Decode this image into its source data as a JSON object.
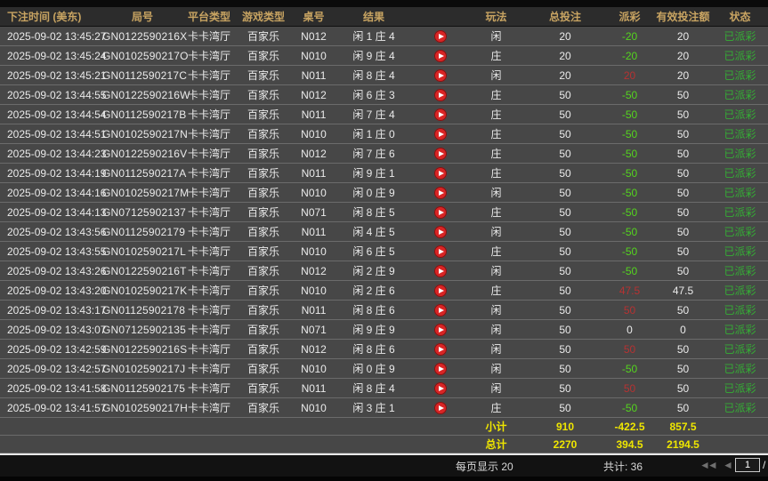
{
  "table": {
    "columns": {
      "time": "下注时间 (美东)",
      "game_no": "局号",
      "platform": "平台类型",
      "game_type": "游戏类型",
      "table_no": "桌号",
      "result": "结果",
      "play": "玩法",
      "total_bet": "总投注",
      "payout": "派彩",
      "valid_bet": "有效投注额",
      "status": "状态"
    },
    "rows": [
      {
        "time": "2025-09-02 13:45:27",
        "game_no": "GN0122590216X",
        "platform": "卡卡湾厅",
        "game_type": "百家乐",
        "table_no": "N012",
        "result": "闲 1 庄 4",
        "play": "闲",
        "total_bet": "20",
        "payout": "-20",
        "payout_class": "neg",
        "valid_bet": "20",
        "status": "已派彩"
      },
      {
        "time": "2025-09-02 13:45:24",
        "game_no": "GN0102590217O",
        "platform": "卡卡湾厅",
        "game_type": "百家乐",
        "table_no": "N010",
        "result": "闲 9 庄 4",
        "play": "庄",
        "total_bet": "20",
        "payout": "-20",
        "payout_class": "neg",
        "valid_bet": "20",
        "status": "已派彩"
      },
      {
        "time": "2025-09-02 13:45:21",
        "game_no": "GN0112590217C",
        "platform": "卡卡湾厅",
        "game_type": "百家乐",
        "table_no": "N011",
        "result": "闲 8 庄 4",
        "play": "闲",
        "total_bet": "20",
        "payout": "20",
        "payout_class": "pos",
        "valid_bet": "20",
        "status": "已派彩"
      },
      {
        "time": "2025-09-02 13:44:55",
        "game_no": "GN0122590216W",
        "platform": "卡卡湾厅",
        "game_type": "百家乐",
        "table_no": "N012",
        "result": "闲 6 庄 3",
        "play": "庄",
        "total_bet": "50",
        "payout": "-50",
        "payout_class": "neg",
        "valid_bet": "50",
        "status": "已派彩"
      },
      {
        "time": "2025-09-02 13:44:54",
        "game_no": "GN0112590217B",
        "platform": "卡卡湾厅",
        "game_type": "百家乐",
        "table_no": "N011",
        "result": "闲 7 庄 4",
        "play": "庄",
        "total_bet": "50",
        "payout": "-50",
        "payout_class": "neg",
        "valid_bet": "50",
        "status": "已派彩"
      },
      {
        "time": "2025-09-02 13:44:51",
        "game_no": "GN0102590217N",
        "platform": "卡卡湾厅",
        "game_type": "百家乐",
        "table_no": "N010",
        "result": "闲 1 庄 0",
        "play": "庄",
        "total_bet": "50",
        "payout": "-50",
        "payout_class": "neg",
        "valid_bet": "50",
        "status": "已派彩"
      },
      {
        "time": "2025-09-02 13:44:23",
        "game_no": "GN0122590216V",
        "platform": "卡卡湾厅",
        "game_type": "百家乐",
        "table_no": "N012",
        "result": "闲 7 庄 6",
        "play": "庄",
        "total_bet": "50",
        "payout": "-50",
        "payout_class": "neg",
        "valid_bet": "50",
        "status": "已派彩"
      },
      {
        "time": "2025-09-02 13:44:19",
        "game_no": "GN0112590217A",
        "platform": "卡卡湾厅",
        "game_type": "百家乐",
        "table_no": "N011",
        "result": "闲 9 庄 1",
        "play": "庄",
        "total_bet": "50",
        "payout": "-50",
        "payout_class": "neg",
        "valid_bet": "50",
        "status": "已派彩"
      },
      {
        "time": "2025-09-02 13:44:16",
        "game_no": "GN0102590217M",
        "platform": "卡卡湾厅",
        "game_type": "百家乐",
        "table_no": "N010",
        "result": "闲 0 庄 9",
        "play": "闲",
        "total_bet": "50",
        "payout": "-50",
        "payout_class": "neg",
        "valid_bet": "50",
        "status": "已派彩"
      },
      {
        "time": "2025-09-02 13:44:13",
        "game_no": "GN07125902137",
        "platform": "卡卡湾厅",
        "game_type": "百家乐",
        "table_no": "N071",
        "result": "闲 8 庄 5",
        "play": "庄",
        "total_bet": "50",
        "payout": "-50",
        "payout_class": "neg",
        "valid_bet": "50",
        "status": "已派彩"
      },
      {
        "time": "2025-09-02 13:43:56",
        "game_no": "GN01125902179",
        "platform": "卡卡湾厅",
        "game_type": "百家乐",
        "table_no": "N011",
        "result": "闲 4 庄 5",
        "play": "闲",
        "total_bet": "50",
        "payout": "-50",
        "payout_class": "neg",
        "valid_bet": "50",
        "status": "已派彩"
      },
      {
        "time": "2025-09-02 13:43:55",
        "game_no": "GN0102590217L",
        "platform": "卡卡湾厅",
        "game_type": "百家乐",
        "table_no": "N010",
        "result": "闲 6 庄 5",
        "play": "庄",
        "total_bet": "50",
        "payout": "-50",
        "payout_class": "neg",
        "valid_bet": "50",
        "status": "已派彩"
      },
      {
        "time": "2025-09-02 13:43:26",
        "game_no": "GN0122590216T",
        "platform": "卡卡湾厅",
        "game_type": "百家乐",
        "table_no": "N012",
        "result": "闲 2 庄 9",
        "play": "闲",
        "total_bet": "50",
        "payout": "-50",
        "payout_class": "neg",
        "valid_bet": "50",
        "status": "已派彩"
      },
      {
        "time": "2025-09-02 13:43:20",
        "game_no": "GN0102590217K",
        "platform": "卡卡湾厅",
        "game_type": "百家乐",
        "table_no": "N010",
        "result": "闲 2 庄 6",
        "play": "庄",
        "total_bet": "50",
        "payout": "47.5",
        "payout_class": "pos",
        "valid_bet": "47.5",
        "status": "已派彩"
      },
      {
        "time": "2025-09-02 13:43:17",
        "game_no": "GN01125902178",
        "platform": "卡卡湾厅",
        "game_type": "百家乐",
        "table_no": "N011",
        "result": "闲 8 庄 6",
        "play": "闲",
        "total_bet": "50",
        "payout": "50",
        "payout_class": "pos",
        "valid_bet": "50",
        "status": "已派彩"
      },
      {
        "time": "2025-09-02 13:43:07",
        "game_no": "GN07125902135",
        "platform": "卡卡湾厅",
        "game_type": "百家乐",
        "table_no": "N071",
        "result": "闲 9 庄 9",
        "play": "闲",
        "total_bet": "50",
        "payout": "0",
        "payout_class": "zero",
        "valid_bet": "0",
        "status": "已派彩"
      },
      {
        "time": "2025-09-02 13:42:59",
        "game_no": "GN0122590216S",
        "platform": "卡卡湾厅",
        "game_type": "百家乐",
        "table_no": "N012",
        "result": "闲 8 庄 6",
        "play": "闲",
        "total_bet": "50",
        "payout": "50",
        "payout_class": "pos",
        "valid_bet": "50",
        "status": "已派彩"
      },
      {
        "time": "2025-09-02 13:42:57",
        "game_no": "GN0102590217J",
        "platform": "卡卡湾厅",
        "game_type": "百家乐",
        "table_no": "N010",
        "result": "闲 0 庄 9",
        "play": "闲",
        "total_bet": "50",
        "payout": "-50",
        "payout_class": "neg",
        "valid_bet": "50",
        "status": "已派彩"
      },
      {
        "time": "2025-09-02 13:41:58",
        "game_no": "GN01125902175",
        "platform": "卡卡湾厅",
        "game_type": "百家乐",
        "table_no": "N011",
        "result": "闲 8 庄 4",
        "play": "闲",
        "total_bet": "50",
        "payout": "50",
        "payout_class": "pos",
        "valid_bet": "50",
        "status": "已派彩"
      },
      {
        "time": "2025-09-02 13:41:57",
        "game_no": "GN0102590217H",
        "platform": "卡卡湾厅",
        "game_type": "百家乐",
        "table_no": "N010",
        "result": "闲 3 庄 1",
        "play": "庄",
        "total_bet": "50",
        "payout": "-50",
        "payout_class": "neg",
        "valid_bet": "50",
        "status": "已派彩"
      }
    ],
    "subtotal": {
      "label": "小计",
      "total_bet": "910",
      "payout": "-422.5",
      "valid_bet": "857.5"
    },
    "total": {
      "label": "总计",
      "total_bet": "2270",
      "payout": "394.5",
      "valid_bet": "2194.5"
    }
  },
  "footer": {
    "per_page_text": "每页显示 20",
    "total_count_text": "共计: 36",
    "page_value": "1",
    "page_separator": "/"
  },
  "icons": {
    "play_icon": "play-circle",
    "first_page_icon": "◄◄",
    "prev_page_icon": "◄"
  },
  "colors": {
    "header_text": "#c8a462",
    "payout_negative": "#54d41e",
    "payout_positive": "#b63232",
    "status_paid": "#35ad35",
    "summary_yellow": "#efe600",
    "row_background": "#474747"
  }
}
